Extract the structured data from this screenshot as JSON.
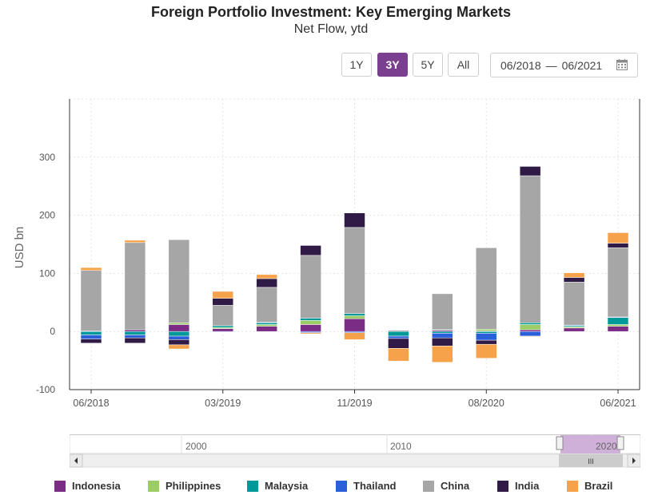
{
  "chart_data": {
    "type": "bar",
    "stacked": true,
    "title": "Foreign Portfolio Investment: Key Emerging Markets",
    "subtitle": "Net Flow, ytd",
    "ylabel": "USD bn",
    "ylim": [
      -100,
      400
    ],
    "yticks": [
      -100,
      0,
      100,
      200,
      300
    ],
    "ytick_labels": [
      "-100",
      "0",
      "100",
      "200",
      "300"
    ],
    "x_tick_labels": [
      "06/2018",
      "03/2019",
      "11/2019",
      "08/2020",
      "06/2021"
    ],
    "x_tick_positions": [
      0,
      3,
      6,
      9,
      12
    ],
    "categories": [
      "06/2018",
      "",
      "",
      "03/2019",
      "",
      "",
      "11/2019",
      "",
      "",
      "08/2020",
      "",
      "",
      "06/2021"
    ],
    "grid": true,
    "legend_position": "bottom",
    "series": [
      {
        "name": "Indonesia",
        "color": "#7b2d86",
        "values": [
          1,
          3,
          12,
          5,
          9,
          12,
          22,
          0,
          2,
          1,
          3,
          6,
          9
        ]
      },
      {
        "name": "Philippines",
        "color": "#9ccc65",
        "values": [
          0,
          0,
          3,
          2,
          3,
          7,
          5,
          0,
          1,
          3,
          9,
          2,
          3
        ]
      },
      {
        "name": "Malaysia",
        "color": "#009999",
        "values": [
          -6,
          -6,
          -8,
          3,
          3,
          4,
          4,
          -8,
          -3,
          -3,
          3,
          2,
          12
        ]
      },
      {
        "name": "Thailand",
        "color": "#2b5fd9",
        "values": [
          -7,
          -5,
          -6,
          -1,
          1,
          -2,
          -2,
          -4,
          -8,
          -12,
          -8,
          1,
          1
        ]
      },
      {
        "name": "China",
        "color": "#a6a6a6",
        "values": [
          104,
          150,
          143,
          35,
          60,
          108,
          148,
          2,
          62,
          140,
          253,
          74,
          119
        ]
      },
      {
        "name": "India",
        "color": "#2f1b45",
        "values": [
          -7,
          -9,
          -9,
          12,
          15,
          17,
          25,
          -17,
          -14,
          -7,
          16,
          8,
          8
        ]
      },
      {
        "name": "Brazil",
        "color": "#f6a24b",
        "values": [
          5,
          4,
          -7,
          12,
          7,
          -2,
          -12,
          -22,
          -28,
          -24,
          -1,
          8,
          18
        ]
      }
    ]
  },
  "range_buttons": [
    {
      "label": "1Y",
      "active": false
    },
    {
      "label": "3Y",
      "active": true
    },
    {
      "label": "5Y",
      "active": false
    },
    {
      "label": "All",
      "active": false
    }
  ],
  "date_range": {
    "from": "06/2018",
    "separator": "—",
    "to": "06/2021"
  },
  "navigator": {
    "labels": [
      "2000",
      "2010",
      "2020"
    ],
    "scroll_grip": "III"
  },
  "legend": [
    {
      "name": "Indonesia",
      "color": "#7b2d86"
    },
    {
      "name": "Philippines",
      "color": "#9ccc65"
    },
    {
      "name": "Malaysia",
      "color": "#009999"
    },
    {
      "name": "Thailand",
      "color": "#2b5fd9"
    },
    {
      "name": "China",
      "color": "#a6a6a6"
    },
    {
      "name": "India",
      "color": "#2f1b45"
    },
    {
      "name": "Brazil",
      "color": "#f6a24b"
    }
  ]
}
